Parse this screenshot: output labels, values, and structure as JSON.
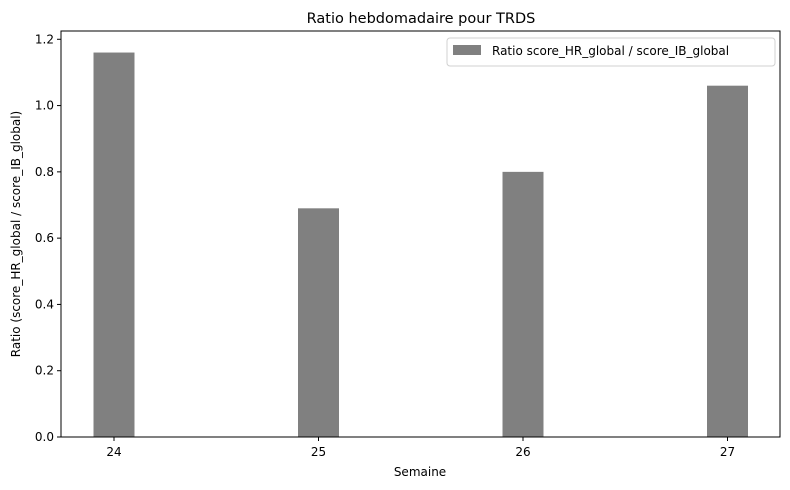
{
  "chart_data": {
    "type": "bar",
    "title": "Ratio hebdomadaire pour TRDS",
    "xlabel": "Semaine",
    "ylabel": "Ratio (score_HR_global / score_IB_global)",
    "categories": [
      "24",
      "25",
      "26",
      "27"
    ],
    "series": [
      {
        "name": "Ratio score_HR_global / score_IB_global",
        "values": [
          1.16,
          0.69,
          0.8,
          1.06
        ],
        "color": "#808080"
      }
    ],
    "ylim": [
      0,
      1.225
    ],
    "yticks": [
      "0.0",
      "0.2",
      "0.4",
      "0.6",
      "0.8",
      "1.0",
      "1.2"
    ],
    "grid": false,
    "legend_position": "top-right"
  }
}
